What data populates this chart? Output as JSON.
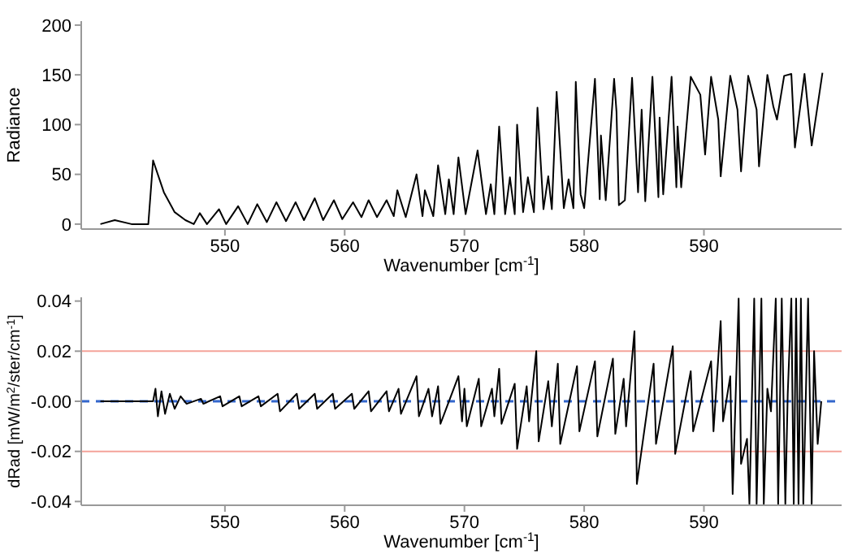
{
  "chart_data": [
    {
      "type": "line",
      "xlabel": "Wavenumber [cm$^{-1}$]",
      "ylabel": "Radiance",
      "xlim": [
        538,
        601.5
      ],
      "ylim": [
        -5,
        204
      ],
      "xticks": [
        550,
        560,
        570,
        580,
        590
      ],
      "yticks": [
        0,
        50,
        100,
        150,
        200
      ],
      "x": [
        539.6,
        540.8,
        542.2,
        543.6,
        544.0,
        544.9,
        545.8,
        546.7,
        547.4,
        547.9,
        548.5,
        549.5,
        550.1,
        551.1,
        551.9,
        552.7,
        553.5,
        554.3,
        555.1,
        555.9,
        556.6,
        557.5,
        558.2,
        559.1,
        559.8,
        560.7,
        561.4,
        562.0,
        562.7,
        563.5,
        564.1,
        564.4,
        565.1,
        566.0,
        566.5,
        566.7,
        567.4,
        567.8,
        568.4,
        568.7,
        569.1,
        569.5,
        570.1,
        571.1,
        571.8,
        572.2,
        572.5,
        572.9,
        573.4,
        573.8,
        574.2,
        574.4,
        574.9,
        575.3,
        575.8,
        576.1,
        576.6,
        577.0,
        577.3,
        577.7,
        578.3,
        578.7,
        579.1,
        579.3,
        579.7,
        580.0,
        580.9,
        581.3,
        581.4,
        581.8,
        582.5,
        582.7,
        582.9,
        583.4,
        584.0,
        584.5,
        584.8,
        585.1,
        585.7,
        586.2,
        586.3,
        586.6,
        587.3,
        587.7,
        587.8,
        588.1,
        588.9,
        589.7,
        590.1,
        590.6,
        591.2,
        591.4,
        592.2,
        592.8,
        593.1,
        593.7,
        594.4,
        594.6,
        595.3,
        595.8,
        596.1,
        596.7,
        597.3,
        597.6,
        598.4,
        599.0,
        599.9
      ],
      "series": [
        {
          "color": "#000000",
          "values": [
            0,
            4,
            0,
            0,
            64,
            32,
            12,
            4,
            0,
            11,
            0,
            15,
            0,
            18,
            0,
            20,
            2,
            22,
            3,
            22,
            4,
            26,
            4,
            24,
            5,
            22,
            7,
            24,
            7,
            24,
            8,
            34,
            7,
            50,
            8,
            34,
            8,
            59,
            10,
            45,
            10,
            67,
            10,
            74,
            10,
            40,
            10,
            98,
            10,
            47,
            10,
            100,
            12,
            47,
            12,
            117,
            15,
            48,
            15,
            133,
            16,
            45,
            16,
            143,
            30,
            16,
            146,
            25,
            89,
            24,
            146,
            113,
            19,
            24,
            147,
            32,
            115,
            23,
            148,
            27,
            107,
            30,
            148,
            37,
            98,
            37,
            148,
            130,
            70,
            148,
            105,
            48,
            149,
            115,
            53,
            149,
            115,
            58,
            150,
            118,
            105,
            149,
            151,
            77,
            151,
            79,
            152
          ]
        }
      ]
    },
    {
      "type": "line",
      "xlabel": "Wavenumber [cm$^{-1}$]",
      "ylabel": "dRad [mW/m$^{2}$/ster/cm$^{-1}$]",
      "xlim": [
        538,
        601.5
      ],
      "ylim": [
        -0.0415,
        0.0415
      ],
      "xticks": [
        550,
        560,
        570,
        580,
        590
      ],
      "yticks": [
        -0.04,
        -0.02,
        {
          "value": 0,
          "label": "-0.00"
        },
        0.02,
        0.04
      ],
      "ref_lines": [
        {
          "axis": "y",
          "value": 0.02,
          "color": "#f4a39a"
        },
        {
          "axis": "y",
          "value": -0.02,
          "color": "#f4a39a"
        },
        {
          "axis": "y",
          "value": 0,
          "color": "#3366cc",
          "line_style": "dashed"
        }
      ],
      "x": [
        539.6,
        544.0,
        544.2,
        544.4,
        544.7,
        545.0,
        545.4,
        545.8,
        546.3,
        546.8,
        548.0,
        548.2,
        549.6,
        549.8,
        551.2,
        551.4,
        552.8,
        553.0,
        554.4,
        554.6,
        556.0,
        556.2,
        557.5,
        557.7,
        559.0,
        559.2,
        560.6,
        560.8,
        562.0,
        562.2,
        563.5,
        563.7,
        564.5,
        564.7,
        566.0,
        566.2,
        567.0,
        567.3,
        567.8,
        568.0,
        569.5,
        569.8,
        570.0,
        570.2,
        571.2,
        571.4,
        572.3,
        572.5,
        572.9,
        573.1,
        574.2,
        574.4,
        575.2,
        575.4,
        576.0,
        576.2,
        577.0,
        577.3,
        577.8,
        578.0,
        579.4,
        579.6,
        580.9,
        581.1,
        582.4,
        582.6,
        583.3,
        583.5,
        584.2,
        584.4,
        585.8,
        586.0,
        587.4,
        587.6,
        588.9,
        589.1,
        590.6,
        590.8,
        591.4,
        591.6,
        592.2,
        592.4,
        592.9,
        593.1,
        593.6,
        593.8,
        594.2,
        594.4,
        594.8,
        595.0,
        595.3,
        595.6,
        596.0,
        596.2,
        596.5,
        596.8,
        597.0,
        597.3,
        597.5,
        597.7,
        597.9,
        598.1,
        598.3,
        598.7,
        599.0,
        599.2,
        599.5,
        599.8
      ],
      "series": [
        {
          "color": "#000000",
          "values": [
            0,
            0,
            0.005,
            -0.006,
            0.004,
            -0.005,
            0.003,
            -0.003,
            0.002,
            -0.001,
            0.001,
            -0.001,
            0.002,
            -0.002,
            0.002,
            -0.002,
            0.002,
            -0.002,
            0.003,
            -0.004,
            0.003,
            -0.003,
            0.003,
            -0.003,
            0.003,
            -0.003,
            0.003,
            -0.003,
            0.004,
            -0.004,
            0.004,
            -0.004,
            0.005,
            -0.005,
            0.01,
            -0.006,
            0.005,
            -0.006,
            0.006,
            -0.009,
            0.01,
            -0.008,
            0.005,
            -0.01,
            0.009,
            -0.01,
            0.005,
            -0.006,
            0.013,
            -0.009,
            0.007,
            -0.019,
            0.006,
            -0.008,
            0.02,
            -0.016,
            0.008,
            -0.01,
            0.015,
            -0.017,
            0.014,
            -0.012,
            0.016,
            -0.014,
            0.017,
            -0.013,
            0.009,
            -0.01,
            0.028,
            -0.033,
            0.015,
            -0.017,
            0.022,
            -0.021,
            0.012,
            -0.012,
            0.016,
            -0.012,
            0.032,
            -0.008,
            0.01,
            -0.037,
            0.041,
            -0.025,
            -0.015,
            -0.041,
            0.041,
            -0.041,
            0.041,
            -0.041,
            0.005,
            -0.004,
            0.041,
            -0.041,
            0.041,
            -0.041,
            0.003,
            0.041,
            -0.041,
            0.041,
            -0.041,
            0.041,
            -0.041,
            0.041,
            -0.041,
            0.02,
            -0.017,
            0.0
          ]
        }
      ]
    }
  ]
}
